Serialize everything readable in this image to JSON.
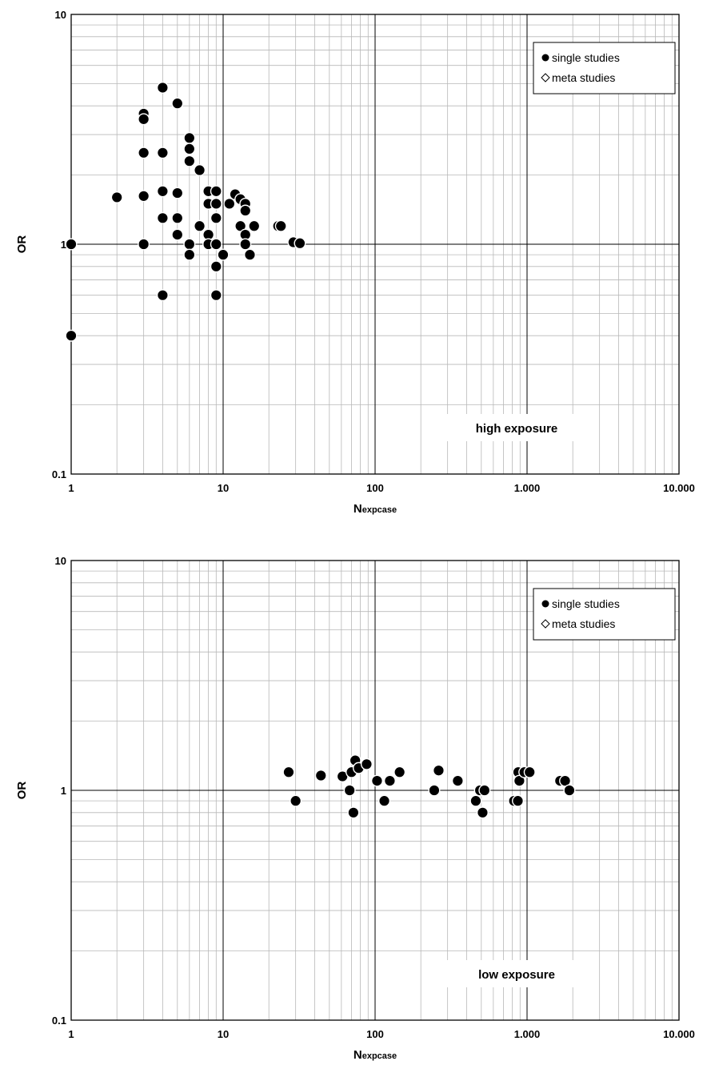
{
  "chart_data": [
    {
      "type": "scatter",
      "xlabel": {
        "main": "N",
        "sub": "expcase"
      },
      "ylabel": "OR",
      "xscale": "log",
      "yscale": "log",
      "xlim": [
        1,
        10000
      ],
      "ylim": [
        0.1,
        10
      ],
      "x_tick_labels": [
        "1",
        "10",
        "100",
        "1.000",
        "10.000"
      ],
      "y_tick_labels": [
        "0.1",
        "1",
        "10"
      ],
      "grid": true,
      "legend_position": "top-right",
      "legend": [
        "single studies",
        "meta studies"
      ],
      "annotation": "high exposure",
      "series": [
        {
          "name": "single studies",
          "marker": "filled-circle",
          "points": [
            [
              1,
              1.0
            ],
            [
              1,
              0.4
            ],
            [
              2,
              1.6
            ],
            [
              3,
              3.7
            ],
            [
              3,
              3.5
            ],
            [
              3,
              2.5
            ],
            [
              3,
              1.62
            ],
            [
              3,
              1.0
            ],
            [
              4,
              4.8
            ],
            [
              4,
              2.5
            ],
            [
              4,
              1.7
            ],
            [
              4,
              1.3
            ],
            [
              4,
              0.6
            ],
            [
              5,
              4.1
            ],
            [
              5,
              1.67
            ],
            [
              5,
              1.3
            ],
            [
              5,
              1.1
            ],
            [
              6,
              2.9
            ],
            [
              6,
              2.6
            ],
            [
              6,
              2.3
            ],
            [
              6,
              1.0
            ],
            [
              6,
              0.9
            ],
            [
              7,
              2.1
            ],
            [
              7,
              1.2
            ],
            [
              8,
              1.7
            ],
            [
              8,
              1.5
            ],
            [
              8,
              1.1
            ],
            [
              8,
              1.0
            ],
            [
              9,
              1.7
            ],
            [
              9,
              1.5
            ],
            [
              9,
              1.3
            ],
            [
              9,
              1.0
            ],
            [
              9,
              0.8
            ],
            [
              9,
              0.6
            ],
            [
              10,
              0.9
            ],
            [
              11,
              1.5
            ],
            [
              12,
              1.65
            ],
            [
              13,
              1.57
            ],
            [
              13,
              1.2
            ],
            [
              14,
              1.5
            ],
            [
              14,
              1.4
            ],
            [
              14,
              1.1
            ],
            [
              14,
              1.0
            ],
            [
              15,
              0.9
            ],
            [
              16,
              1.2
            ],
            [
              23,
              1.2
            ],
            [
              24,
              1.2
            ],
            [
              29,
              1.02
            ],
            [
              32,
              1.01
            ]
          ]
        },
        {
          "name": "meta studies",
          "marker": "open-diamond",
          "points": []
        }
      ]
    },
    {
      "type": "scatter",
      "xlabel": {
        "main": "N",
        "sub": "expcase"
      },
      "ylabel": "OR",
      "xscale": "log",
      "yscale": "log",
      "xlim": [
        1,
        10000
      ],
      "ylim": [
        0.1,
        10
      ],
      "x_tick_labels": [
        "1",
        "10",
        "100",
        "1.000",
        "10.000"
      ],
      "y_tick_labels": [
        "0.1",
        "1",
        "10"
      ],
      "grid": true,
      "legend_position": "top-right",
      "legend": [
        "single studies",
        "meta studies"
      ],
      "annotation": "low exposure",
      "series": [
        {
          "name": "single studies",
          "marker": "filled-circle",
          "points": [
            [
              27,
              1.2
            ],
            [
              30,
              0.9
            ],
            [
              44,
              1.16
            ],
            [
              61,
              1.15
            ],
            [
              68,
              1.0
            ],
            [
              70,
              1.2
            ],
            [
              72,
              0.8
            ],
            [
              74,
              1.35
            ],
            [
              78,
              1.25
            ],
            [
              88,
              1.3
            ],
            [
              103,
              1.1
            ],
            [
              115,
              0.9
            ],
            [
              125,
              1.1
            ],
            [
              145,
              1.2
            ],
            [
              245,
              1.0
            ],
            [
              262,
              1.22
            ],
            [
              350,
              1.1
            ],
            [
              460,
              0.9
            ],
            [
              490,
              1.0
            ],
            [
              510,
              0.8
            ],
            [
              525,
              1.0
            ],
            [
              820,
              0.9
            ],
            [
              870,
              0.9
            ],
            [
              875,
              1.2
            ],
            [
              890,
              1.1
            ],
            [
              960,
              1.2
            ],
            [
              1040,
              1.2
            ],
            [
              1650,
              1.1
            ],
            [
              1780,
              1.1
            ],
            [
              1900,
              1.0
            ]
          ]
        },
        {
          "name": "meta studies",
          "marker": "open-diamond",
          "points": []
        }
      ]
    }
  ]
}
